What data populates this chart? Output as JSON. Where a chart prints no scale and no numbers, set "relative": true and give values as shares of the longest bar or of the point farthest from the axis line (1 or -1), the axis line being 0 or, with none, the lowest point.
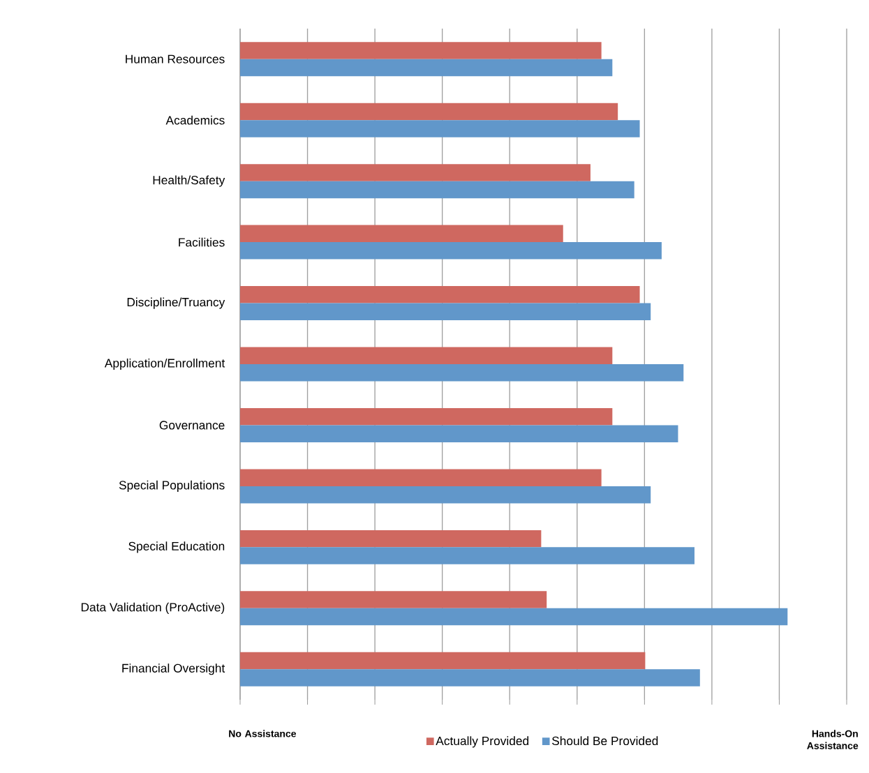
{
  "chart_data": {
    "type": "bar",
    "orientation": "horizontal",
    "relative": true,
    "categories": [
      "Human Resources",
      "Academics",
      "Health/Safety",
      "Facilities",
      "Discipline/Truancy",
      "Application/Enrollment",
      "Governance",
      "Special Populations",
      "Special Education",
      "Data Validation (ProActive)",
      "Financial Oversight"
    ],
    "series": [
      {
        "name": "Actually Provided",
        "color": "#cf6860",
        "values": [
          0.66,
          0.69,
          0.64,
          0.59,
          0.73,
          0.68,
          0.68,
          0.66,
          0.55,
          0.56,
          0.74
        ]
      },
      {
        "name": "Should Be Provided",
        "color": "#6197ca",
        "values": [
          0.68,
          0.73,
          0.72,
          0.77,
          0.75,
          0.81,
          0.8,
          0.75,
          0.83,
          1,
          0.84
        ]
      }
    ],
    "annotations": [
      "No Assistance",
      "Hands-On Assistance"
    ],
    "grid": "x",
    "legend": "bottom"
  }
}
